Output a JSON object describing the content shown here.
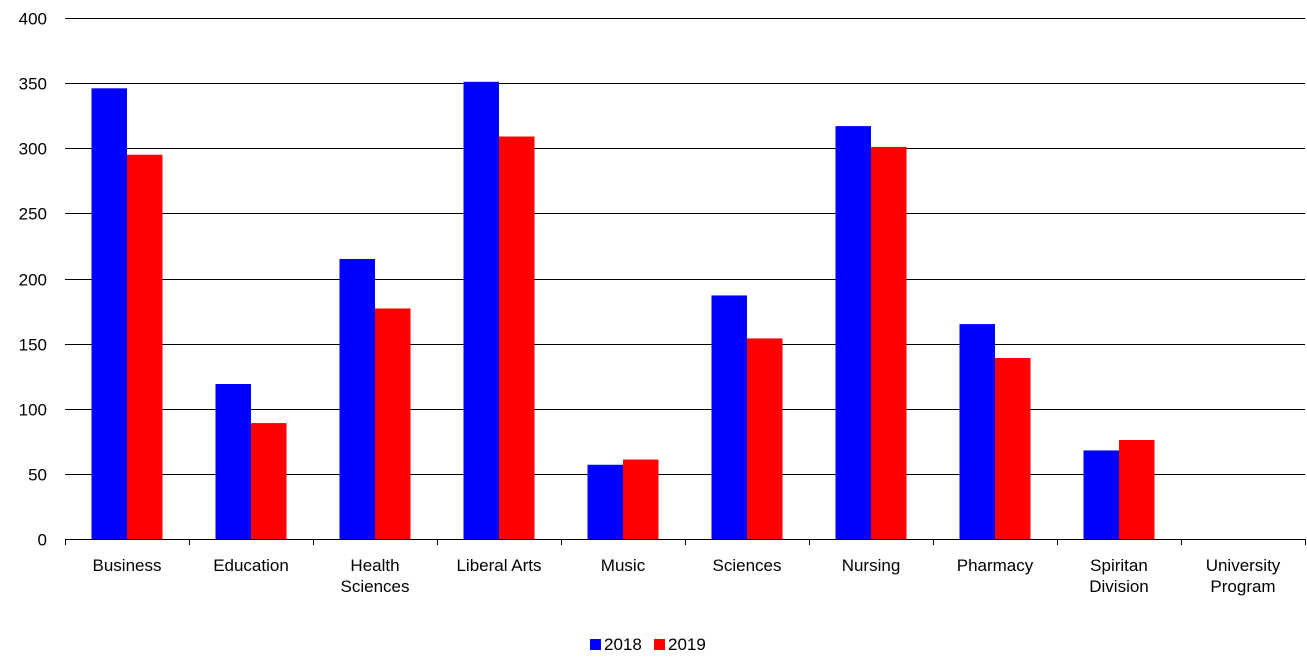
{
  "chart_data": {
    "type": "bar",
    "title": "",
    "xlabel": "",
    "ylabel": "",
    "ylim": [
      0,
      400
    ],
    "yticks": [
      0,
      50,
      100,
      150,
      200,
      250,
      300,
      350,
      400
    ],
    "grid": true,
    "legend_position": "bottom-center",
    "categories": [
      [
        "Business"
      ],
      [
        "Education"
      ],
      [
        "Health",
        "Sciences"
      ],
      [
        "Liberal Arts"
      ],
      [
        "Music"
      ],
      [
        "Sciences"
      ],
      [
        "Nursing"
      ],
      [
        "Pharmacy"
      ],
      [
        "Spiritan",
        "Division"
      ],
      [
        "University",
        "Program"
      ]
    ],
    "series": [
      {
        "name": "2018",
        "color": "#0000FF",
        "values": [
          346,
          119,
          215,
          351,
          57,
          187,
          317,
          165,
          68,
          null
        ]
      },
      {
        "name": "2019",
        "color": "#FF0000",
        "values": [
          295,
          89,
          177,
          309,
          61,
          154,
          301,
          139,
          76,
          null
        ]
      }
    ]
  }
}
